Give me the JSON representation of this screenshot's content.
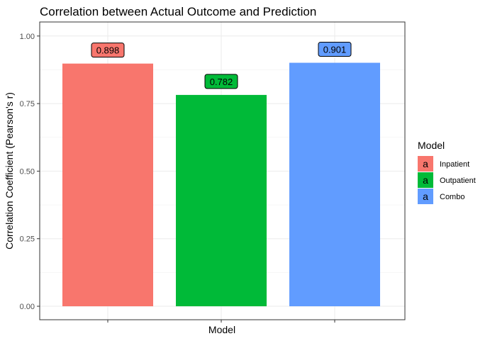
{
  "chart_data": {
    "type": "bar",
    "title": "Correlation between Actual Outcome and Prediction",
    "xlabel": "Model",
    "ylabel": "Correlation Coefficient (Pearson's r)",
    "categories": [
      "Inpatient",
      "Outpatient",
      "Combo"
    ],
    "values": [
      0.898,
      0.782,
      0.901
    ],
    "data_labels": [
      "0.898",
      "0.782",
      "0.901"
    ],
    "colors": [
      "#F8766D",
      "#00BA38",
      "#619CFF"
    ],
    "ylim": [
      0,
      1.0
    ],
    "yticks": [
      0.0,
      0.25,
      0.5,
      0.75,
      1.0
    ],
    "ytick_labels": [
      "0.00",
      "0.25",
      "0.50",
      "0.75",
      "1.00"
    ],
    "grid": true,
    "legend": {
      "title": "Model",
      "position": "right",
      "key_glyph": "a",
      "entries": [
        "Inpatient",
        "Outpatient",
        "Combo"
      ]
    }
  }
}
